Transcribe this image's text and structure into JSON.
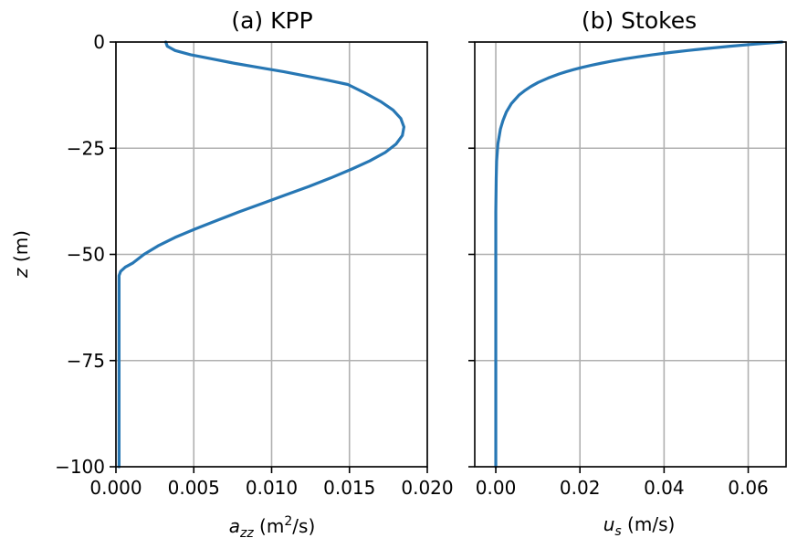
{
  "colors": {
    "line": "#2777b4",
    "grid": "#b0b0b0"
  },
  "chart_data": [
    {
      "type": "line",
      "title": "(a) KPP",
      "xlabel": "a_zz (m²/s)",
      "xlabel_parts": {
        "symbol": "a",
        "subscript": "zz",
        "unit_pre": " (m",
        "unit_sup": "2",
        "unit_post": "/s)"
      },
      "ylabel": "z (m)",
      "ylabel_parts": {
        "symbol": "z",
        "unit": " (m)"
      },
      "xlim": [
        0,
        0.02
      ],
      "ylim": [
        -100,
        0
      ],
      "xticks": [
        0,
        0.005,
        0.01,
        0.015,
        0.02
      ],
      "xtick_labels": [
        "0.000",
        "0.005",
        "0.010",
        "0.015",
        "0.020"
      ],
      "yticks": [
        0,
        -25,
        -50,
        -75,
        -100
      ],
      "ytick_labels": [
        "0",
        "−25",
        "−50",
        "−75",
        "−100"
      ],
      "grid": true,
      "series": [
        {
          "x": [
            0.0032,
            0.0033,
            0.0038,
            0.0048,
            0.0062,
            0.0076,
            0.0092,
            0.0108,
            0.0122,
            0.0136,
            0.0149,
            0.016,
            0.017,
            0.0178,
            0.0183,
            0.0185,
            0.0184,
            0.018,
            0.0173,
            0.0163,
            0.0151,
            0.0138,
            0.0124,
            0.0109,
            0.0094,
            0.0079,
            0.0065,
            0.0051,
            0.0038,
            0.0027,
            0.0018,
            0.0011,
            0.0006,
            0.0003,
            0.0002,
            0.0002,
            0.0002,
            0.0002,
            0.0002
          ],
          "y": [
            0,
            -1,
            -2,
            -3,
            -4,
            -5,
            -6,
            -7,
            -8,
            -9,
            -10,
            -12,
            -14,
            -16,
            -18,
            -20,
            -22,
            -24,
            -26,
            -28,
            -30,
            -32,
            -34,
            -36,
            -38,
            -40,
            -42,
            -44,
            -46,
            -48,
            -50,
            -52,
            -53,
            -54,
            -55,
            -60,
            -75,
            -90,
            -100
          ]
        }
      ]
    },
    {
      "type": "line",
      "title": "(b) Stokes",
      "xlabel": "u_s (m/s)",
      "xlabel_parts": {
        "symbol": "u",
        "subscript": "s",
        "unit": " (m/s)"
      },
      "ylabel": "",
      "xlim": [
        -0.005,
        0.069
      ],
      "ylim": [
        -100,
        0
      ],
      "xticks": [
        0,
        0.02,
        0.04,
        0.06
      ],
      "xtick_labels": [
        "0.00",
        "0.02",
        "0.04",
        "0.06"
      ],
      "yticks": [
        0,
        -25,
        -50,
        -75,
        -100
      ],
      "grid": true,
      "series": [
        {
          "x": [
            0.068,
            0.0615,
            0.0557,
            0.0504,
            0.0456,
            0.0412,
            0.0373,
            0.0337,
            0.0305,
            0.0276,
            0.025,
            0.0226,
            0.0204,
            0.0185,
            0.0167,
            0.0151,
            0.0124,
            0.0101,
            0.0083,
            0.0068,
            0.0055,
            0.0037,
            0.0025,
            0.0017,
            0.0011,
            0.0005,
            0.0002,
            0.0001,
            0.0,
            0.0
          ],
          "y": [
            0,
            -0.5,
            -1,
            -1.5,
            -2,
            -2.5,
            -3,
            -3.5,
            -4,
            -4.5,
            -5,
            -5.5,
            -6,
            -6.5,
            -7,
            -7.5,
            -8.5,
            -9.5,
            -10.5,
            -11.5,
            -12.5,
            -14.5,
            -16.5,
            -18.5,
            -20.5,
            -24,
            -28,
            -32,
            -40,
            -100
          ]
        }
      ]
    }
  ]
}
